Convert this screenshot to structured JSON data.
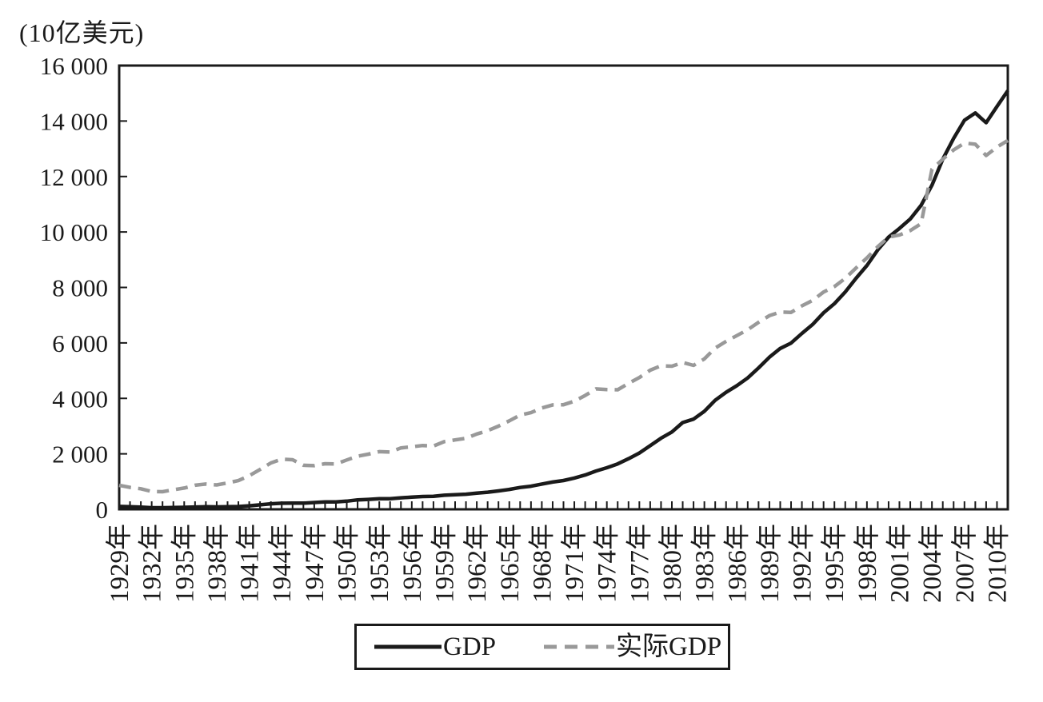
{
  "chart_data": {
    "type": "line",
    "title": "",
    "unit_label": "(10亿美元)",
    "xlabel": "",
    "ylabel": "(10亿美元)",
    "x_start": 1929,
    "x_end": 2011,
    "ylim": [
      0,
      16000
    ],
    "grid": false,
    "legend_position": "bottom-center-boxed",
    "axis_color": "#1a1a1a",
    "y_tick_values": [
      0,
      2000,
      4000,
      6000,
      8000,
      10000,
      12000,
      14000,
      16000
    ],
    "y_ticks": [
      "0",
      "2 000",
      "4 000",
      "6 000",
      "8 000",
      "10 000",
      "12 000",
      "14 000",
      "16 000"
    ],
    "x_tick_years": [
      1929,
      1932,
      1935,
      1938,
      1941,
      1944,
      1947,
      1950,
      1953,
      1956,
      1959,
      1962,
      1965,
      1968,
      1971,
      1974,
      1977,
      1980,
      1983,
      1986,
      1989,
      1992,
      1995,
      1998,
      2001,
      2004,
      2007,
      2010
    ],
    "x_tick_labels": [
      "1929年",
      "1932年",
      "1935年",
      "1938年",
      "1941年",
      "1944年",
      "1947年",
      "1950年",
      "1953年",
      "1956年",
      "1959年",
      "1962年",
      "1965年",
      "1968年",
      "1971年",
      "1974年",
      "1977年",
      "1980年",
      "1983年",
      "1986年",
      "1989年",
      "1992年",
      "1995年",
      "1998年",
      "2001年",
      "2004年",
      "2007年",
      "2010年"
    ],
    "series": [
      {
        "name": "GDP",
        "style": "solid",
        "color": "#1a1a1a",
        "width": 4.5,
        "values": [
          103.6,
          91.2,
          76.5,
          58.7,
          56.4,
          66.0,
          73.3,
          83.8,
          91.9,
          86.1,
          92.2,
          101.4,
          126.7,
          161.9,
          198.6,
          219.8,
          223.0,
          222.2,
          244.1,
          269.1,
          267.2,
          293.7,
          339.3,
          358.3,
          379.3,
          380.4,
          414.7,
          437.4,
          461.1,
          467.2,
          506.6,
          526.4,
          544.7,
          585.6,
          617.7,
          663.6,
          719.1,
          787.7,
          832.4,
          909.8,
          984.4,
          1038.3,
          1126.8,
          1237.9,
          1382.3,
          1499.5,
          1637.7,
          1824.6,
          2030.1,
          2293.8,
          2562.2,
          2788.1,
          3126.8,
          3253.2,
          3534.6,
          3930.9,
          4217.5,
          4460.1,
          4736.4,
          5100.4,
          5482.1,
          5800.5,
          5992.1,
          6342.3,
          6667.4,
          7085.2,
          7414.7,
          7838.5,
          8332.4,
          8793.5,
          9353.5,
          9817.0,
          10128.0,
          10469.6,
          10960.8,
          11685.9,
          12623.0,
          13377.2,
          14028.7,
          14291.5,
          13939.0,
          14526.5,
          15094.0
        ]
      },
      {
        "name": "实际GDP",
        "style": "dashed",
        "color": "#999999",
        "width": 4.5,
        "dash": [
          15,
          9
        ],
        "values": [
          865.2,
          790.7,
          739.9,
          643.7,
          635.5,
          704.2,
          766.9,
          866.6,
          911.1,
          879.7,
          950.7,
          1034.1,
          1211.1,
          1435.4,
          1670.9,
          1806.5,
          1786.3,
          1589.4,
          1574.5,
          1643.2,
          1634.6,
          1777.3,
          1915.0,
          1988.3,
          2079.5,
          2065.4,
          2212.8,
          2255.8,
          2301.1,
          2279.2,
          2441.3,
          2501.8,
          2560.0,
          2715.2,
          2834.0,
          2998.6,
          3191.1,
          3399.1,
          3484.6,
          3652.7,
          3765.4,
          3771.9,
          3898.6,
          4105.0,
          4341.5,
          4319.6,
          4311.2,
          4540.9,
          4750.5,
          5015.0,
          5173.4,
          5161.7,
          5291.7,
          5189.3,
          5423.8,
          5813.6,
          6053.7,
          6263.6,
          6475.1,
          6742.7,
          6981.4,
          7112.5,
          7100.5,
          7336.6,
          7532.7,
          7835.5,
          8031.7,
          8328.9,
          8703.5,
          9066.9,
          9470.3,
          9817.0,
          9890.7,
          10048.8,
          10301.0,
          12263.8,
          12623.0,
          12958.5,
          13206.4,
          13161.9,
          12757.9,
          13063.0,
          13299.1
        ]
      }
    ]
  },
  "legend": {
    "gdp_label": "GDP",
    "real_gdp_label": "实际GDP"
  }
}
